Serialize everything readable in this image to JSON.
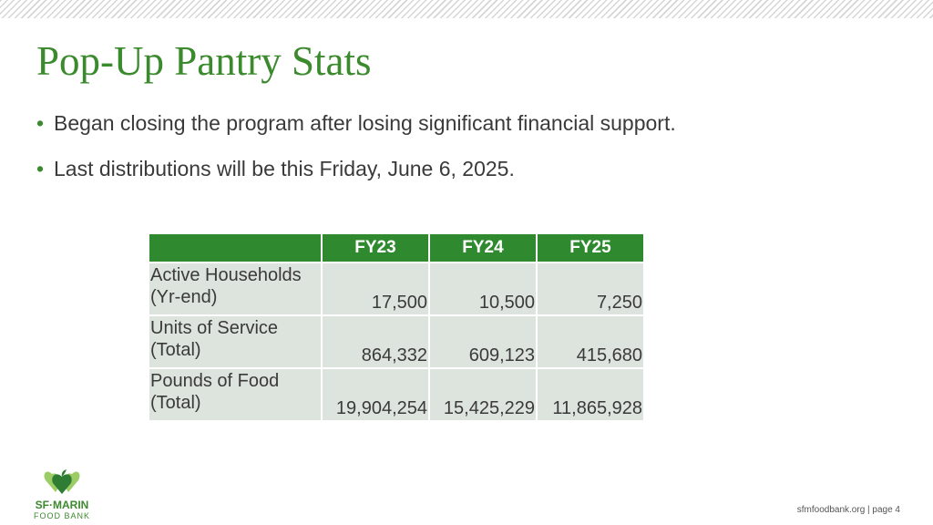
{
  "slide": {
    "title": "Pop-Up Pantry Stats",
    "bullet_glyph": "•",
    "bullets": [
      "Began closing the program after losing significant financial support.",
      "Last distributions will be this Friday, June 6, 2025."
    ]
  },
  "table": {
    "headers": [
      "",
      "FY23",
      "FY24",
      "FY25"
    ],
    "rows": [
      {
        "label_line1": "Active Households",
        "label_line2": "(Yr-end)",
        "values": [
          "17,500",
          "10,500",
          "7,250"
        ]
      },
      {
        "label_line1": "Units of Service",
        "label_line2": "(Total)",
        "values": [
          "864,332",
          "609,123",
          "415,680"
        ]
      },
      {
        "label_line1": "Pounds of Food",
        "label_line2": "(Total)",
        "values": [
          "19,904,254",
          "15,425,229",
          "11,865,928"
        ]
      }
    ]
  },
  "logo": {
    "name": "SF·MARIN",
    "sub": "FOOD BANK",
    "icon": "heart-leaf-icon"
  },
  "footer": {
    "text": "sfmfoodbank.org | page 4"
  },
  "colors": {
    "accent": "#3b8a2e",
    "table_header": "#2f8a2f",
    "table_cell": "#dde3dd"
  }
}
